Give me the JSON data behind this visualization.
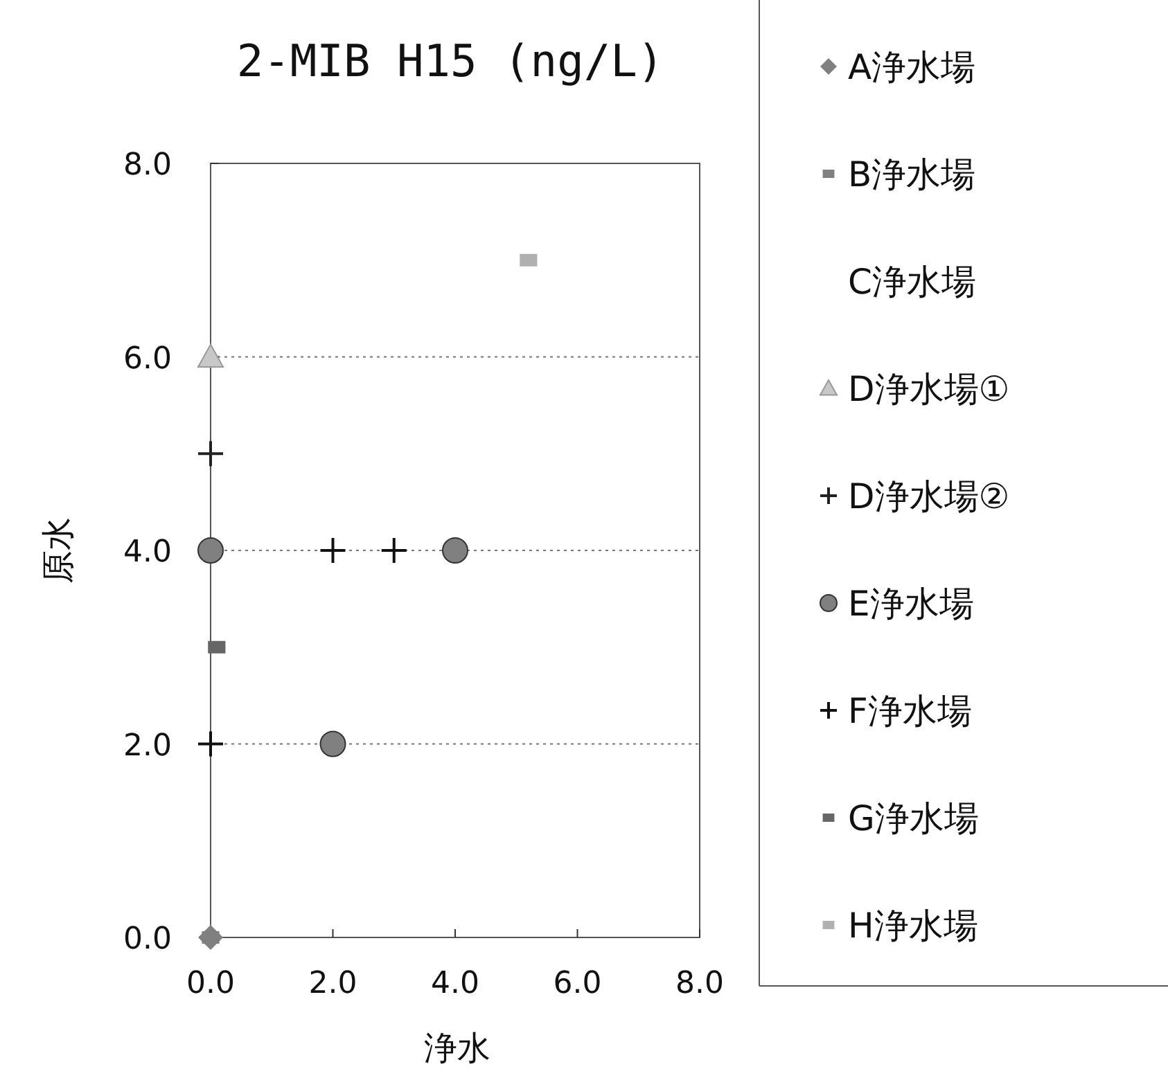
{
  "chart_data": {
    "type": "scatter",
    "title": "2-MIB H15 (ng/L)",
    "xlabel": "浄水",
    "ylabel": "原水",
    "xlim": [
      0,
      8
    ],
    "ylim": [
      0,
      8
    ],
    "xticks": [
      {
        "value": 0,
        "label": "0.0"
      },
      {
        "value": 2,
        "label": "2.0"
      },
      {
        "value": 4,
        "label": "4.0"
      },
      {
        "value": 6,
        "label": "6.0"
      },
      {
        "value": 8,
        "label": "8.0"
      }
    ],
    "yticks": [
      {
        "value": 0,
        "label": "0.0"
      },
      {
        "value": 2,
        "label": "2.0"
      },
      {
        "value": 4,
        "label": "4.0"
      },
      {
        "value": 6,
        "label": "6.0"
      },
      {
        "value": 8,
        "label": "8.0"
      }
    ],
    "grid": "y",
    "line_style": "dotted",
    "legend": "right",
    "series": [
      {
        "name": "A浄水場",
        "color": "#808080",
        "marker": "diamond",
        "x": [
          0
        ],
        "values": [
          0
        ]
      },
      {
        "name": "B浄水場",
        "color": "#808080",
        "marker": "square",
        "x": [
          0
        ],
        "values": [
          0
        ]
      },
      {
        "name": "C浄水場",
        "marker": "none"
      },
      {
        "name": "D浄水場①",
        "color": "#c8c8c8",
        "marker": "triangle",
        "x": [
          0
        ],
        "values": [
          6
        ]
      },
      {
        "name": "D浄水場②",
        "color": "#222222",
        "marker": "cross",
        "x": [
          0
        ],
        "values": [
          5
        ]
      },
      {
        "name": "E浄水場",
        "color": "#808080",
        "marker": "circle",
        "x": [
          0,
          4,
          2
        ],
        "values": [
          4,
          4,
          2
        ]
      },
      {
        "name": "F浄水場",
        "color": "#111111",
        "marker": "cross",
        "x": [
          2,
          3,
          0
        ],
        "values": [
          4,
          4,
          2
        ]
      },
      {
        "name": "G浄水場",
        "color": "#666666",
        "marker": "square",
        "x": [
          0.1
        ],
        "values": [
          3
        ]
      },
      {
        "name": "H浄水場",
        "color": "#b0b0b0",
        "marker": "square",
        "x": [
          5.2
        ],
        "values": [
          7
        ]
      }
    ]
  }
}
